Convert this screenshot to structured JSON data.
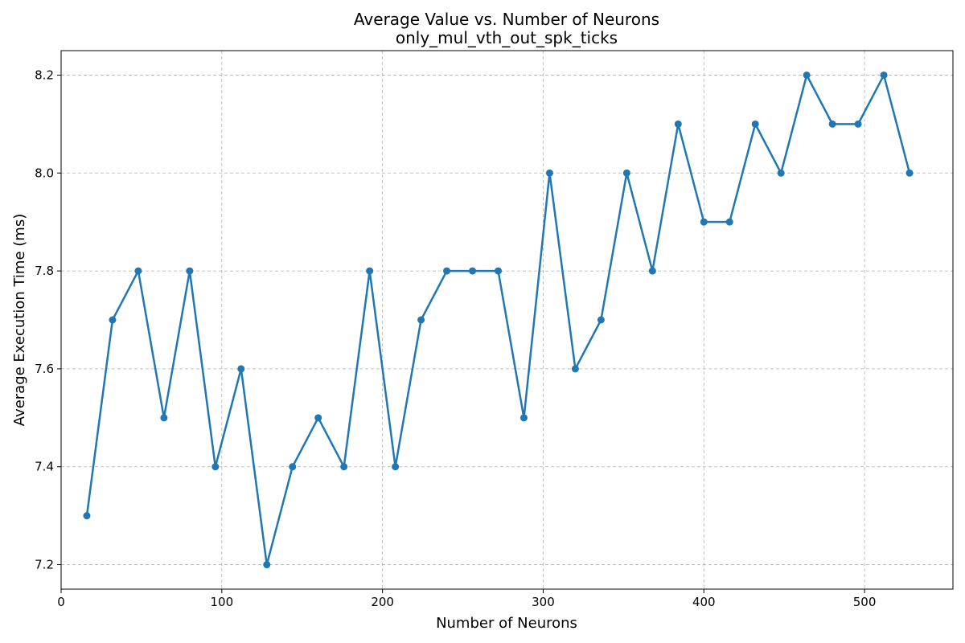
{
  "chart_data": {
    "type": "line",
    "title": "Average Value vs. Number of Neurons",
    "subtitle": "only_mul_vth_out_spk_ticks",
    "xlabel": "Number of Neurons",
    "ylabel": "Average Execution Time (ms)",
    "xlim": [
      0,
      555
    ],
    "ylim": [
      7.15,
      8.25
    ],
    "xticks": [
      0,
      100,
      200,
      300,
      400,
      500
    ],
    "yticks": [
      7.2,
      7.4,
      7.6,
      7.8,
      8.0,
      8.2
    ],
    "grid": true,
    "color": "#1f77b4",
    "x": [
      16,
      32,
      48,
      64,
      80,
      96,
      112,
      128,
      144,
      160,
      176,
      192,
      208,
      224,
      240,
      256,
      272,
      288,
      304,
      320,
      336,
      352,
      368,
      384,
      400,
      416,
      432,
      448,
      464,
      480,
      496,
      512,
      528
    ],
    "y": [
      7.3,
      7.7,
      7.8,
      7.5,
      7.8,
      7.4,
      7.6,
      7.2,
      7.4,
      7.5,
      7.4,
      7.8,
      7.4,
      7.7,
      7.8,
      7.8,
      7.8,
      7.5,
      8.0,
      7.6,
      7.7,
      8.0,
      7.8,
      8.1,
      7.9,
      7.9,
      8.1,
      8.0,
      8.2,
      8.1,
      8.1,
      8.2,
      8.0
    ]
  }
}
